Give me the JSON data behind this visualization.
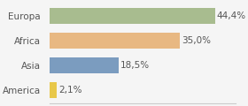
{
  "categories": [
    "America",
    "Asia",
    "Africa",
    "Europa"
  ],
  "values": [
    2.1,
    18.5,
    35.0,
    44.4
  ],
  "labels": [
    "2,1%",
    "18,5%",
    "35,0%",
    "44,4%"
  ],
  "bar_colors": [
    "#e8c84a",
    "#7b9cbf",
    "#e8b882",
    "#a8bc8f"
  ],
  "background_color": "#f5f5f5",
  "xlim": [
    0,
    50
  ],
  "label_fontsize": 7.5,
  "category_fontsize": 7.5
}
